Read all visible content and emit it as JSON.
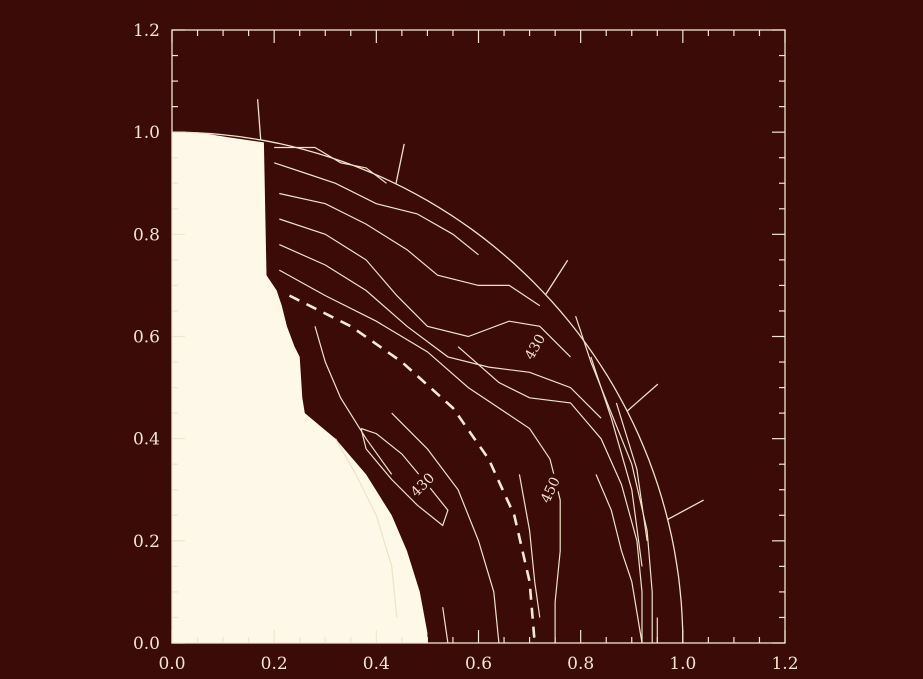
{
  "colors": {
    "background": "#3a0b07",
    "line": "#efe2c8",
    "solid_region": "#fdf8e8"
  },
  "chart_data": {
    "type": "contour",
    "title": "",
    "xlabel": "",
    "ylabel": "",
    "xlim": [
      0.0,
      1.2
    ],
    "ylim": [
      0.0,
      1.2
    ],
    "x_ticks": [
      "0.0",
      "0.2",
      "0.4",
      "0.6",
      "0.8",
      "1.0",
      "1.2"
    ],
    "y_ticks": [
      "0.0",
      "0.2",
      "0.4",
      "0.6",
      "0.8",
      "1.0",
      "1.2"
    ],
    "contour_labels": [
      {
        "text": "430",
        "x": 0.71,
        "y": 0.58,
        "rotation": -60
      },
      {
        "text": "430",
        "x": 0.49,
        "y": 0.31,
        "rotation": -45
      },
      {
        "text": "450",
        "x": 0.74,
        "y": 0.3,
        "rotation": -65
      }
    ],
    "solid_region_boundary": [
      [
        0.0,
        1.0
      ],
      [
        0.05,
        1.0
      ],
      [
        0.11,
        0.99
      ],
      [
        0.18,
        0.98
      ],
      [
        0.185,
        0.72
      ],
      [
        0.205,
        0.69
      ],
      [
        0.215,
        0.66
      ],
      [
        0.225,
        0.62
      ],
      [
        0.24,
        0.58
      ],
      [
        0.25,
        0.56
      ],
      [
        0.255,
        0.48
      ],
      [
        0.26,
        0.45
      ],
      [
        0.32,
        0.4
      ],
      [
        0.38,
        0.33
      ],
      [
        0.43,
        0.25
      ],
      [
        0.46,
        0.18
      ],
      [
        0.485,
        0.1
      ],
      [
        0.5,
        0.02
      ],
      [
        0.5,
        0.0
      ],
      [
        0.0,
        0.0
      ]
    ],
    "outer_boundary": {
      "shape": "quarter-arc",
      "radius_x": 1.0,
      "radius_y": 1.0
    },
    "dashed_curve": [
      [
        0.23,
        0.68
      ],
      [
        0.35,
        0.62
      ],
      [
        0.45,
        0.55
      ],
      [
        0.55,
        0.46
      ],
      [
        0.62,
        0.36
      ],
      [
        0.67,
        0.25
      ],
      [
        0.7,
        0.12
      ],
      [
        0.71,
        0.0
      ]
    ],
    "boundary_markers": [
      {
        "angle_deg": 80,
        "length": 0.08
      },
      {
        "angle_deg": 64,
        "length": 0.08
      },
      {
        "angle_deg": 43,
        "length": 0.08
      },
      {
        "angle_deg": 27,
        "length": 0.08
      },
      {
        "angle_deg": 14,
        "length": 0.08
      }
    ],
    "contour_lines": [
      [
        [
          0.2,
          0.97
        ],
        [
          0.28,
          0.97
        ],
        [
          0.33,
          0.94
        ],
        [
          0.38,
          0.93
        ],
        [
          0.42,
          0.9
        ]
      ],
      [
        [
          0.2,
          0.94
        ],
        [
          0.26,
          0.92
        ],
        [
          0.32,
          0.9
        ],
        [
          0.4,
          0.86
        ],
        [
          0.48,
          0.84
        ],
        [
          0.55,
          0.8
        ],
        [
          0.6,
          0.76
        ]
      ],
      [
        [
          0.21,
          0.88
        ],
        [
          0.3,
          0.86
        ],
        [
          0.38,
          0.82
        ],
        [
          0.46,
          0.77
        ],
        [
          0.52,
          0.72
        ],
        [
          0.6,
          0.7
        ],
        [
          0.66,
          0.7
        ],
        [
          0.72,
          0.66
        ]
      ],
      [
        [
          0.21,
          0.83
        ],
        [
          0.3,
          0.8
        ],
        [
          0.38,
          0.75
        ],
        [
          0.44,
          0.68
        ],
        [
          0.5,
          0.62
        ],
        [
          0.58,
          0.6
        ],
        [
          0.66,
          0.63
        ],
        [
          0.72,
          0.62
        ],
        [
          0.78,
          0.56
        ]
      ],
      [
        [
          0.21,
          0.78
        ],
        [
          0.3,
          0.74
        ],
        [
          0.38,
          0.69
        ],
        [
          0.46,
          0.62
        ],
        [
          0.54,
          0.56
        ],
        [
          0.62,
          0.54
        ],
        [
          0.7,
          0.53
        ],
        [
          0.78,
          0.5
        ],
        [
          0.84,
          0.44
        ]
      ],
      [
        [
          0.21,
          0.73
        ],
        [
          0.3,
          0.68
        ],
        [
          0.4,
          0.63
        ],
        [
          0.5,
          0.57
        ],
        [
          0.58,
          0.5
        ],
        [
          0.64,
          0.46
        ],
        [
          0.7,
          0.42
        ],
        [
          0.74,
          0.36
        ],
        [
          0.76,
          0.28
        ],
        [
          0.76,
          0.18
        ],
        [
          0.75,
          0.08
        ],
        [
          0.75,
          0.0
        ]
      ],
      [
        [
          0.56,
          0.58
        ],
        [
          0.64,
          0.51
        ],
        [
          0.7,
          0.48
        ],
        [
          0.78,
          0.47
        ],
        [
          0.84,
          0.4
        ],
        [
          0.88,
          0.31
        ],
        [
          0.91,
          0.2
        ],
        [
          0.92,
          0.1
        ],
        [
          0.92,
          0.0
        ]
      ],
      [
        [
          0.79,
          0.64
        ],
        [
          0.82,
          0.55
        ],
        [
          0.86,
          0.45
        ],
        [
          0.9,
          0.35
        ],
        [
          0.93,
          0.22
        ],
        [
          0.94,
          0.1
        ],
        [
          0.94,
          0.0
        ]
      ],
      [
        [
          0.82,
          0.56
        ],
        [
          0.86,
          0.44
        ],
        [
          0.9,
          0.3
        ],
        [
          0.92,
          0.15
        ]
      ],
      [
        [
          0.87,
          0.47
        ],
        [
          0.91,
          0.34
        ],
        [
          0.93,
          0.2
        ]
      ],
      [
        [
          0.83,
          0.33
        ],
        [
          0.86,
          0.26
        ],
        [
          0.88,
          0.18
        ],
        [
          0.9,
          0.12
        ],
        [
          0.92,
          0.0
        ]
      ],
      [
        [
          0.37,
          0.42
        ],
        [
          0.4,
          0.41
        ],
        [
          0.45,
          0.37
        ],
        [
          0.5,
          0.31
        ],
        [
          0.54,
          0.26
        ],
        [
          0.53,
          0.23
        ],
        [
          0.48,
          0.27
        ],
        [
          0.43,
          0.32
        ],
        [
          0.38,
          0.38
        ],
        [
          0.37,
          0.42
        ]
      ],
      [
        [
          0.28,
          0.62
        ],
        [
          0.3,
          0.55
        ],
        [
          0.33,
          0.48
        ],
        [
          0.38,
          0.4
        ],
        [
          0.43,
          0.33
        ]
      ],
      [
        [
          0.32,
          0.4
        ],
        [
          0.36,
          0.33
        ],
        [
          0.4,
          0.25
        ],
        [
          0.43,
          0.15
        ],
        [
          0.44,
          0.05
        ]
      ],
      [
        [
          0.43,
          0.45
        ],
        [
          0.5,
          0.38
        ],
        [
          0.56,
          0.3
        ],
        [
          0.6,
          0.2
        ],
        [
          0.63,
          0.1
        ],
        [
          0.64,
          0.0
        ]
      ],
      [
        [
          0.53,
          0.07
        ],
        [
          0.54,
          0.0
        ]
      ],
      [
        [
          0.95,
          0.05
        ],
        [
          0.95,
          0.0
        ]
      ],
      [
        [
          0.68,
          0.33
        ],
        [
          0.7,
          0.22
        ],
        [
          0.71,
          0.12
        ],
        [
          0.72,
          0.05
        ]
      ]
    ]
  }
}
